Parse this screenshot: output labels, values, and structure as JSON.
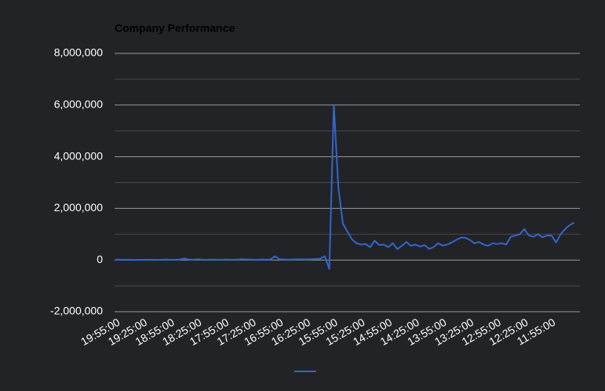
{
  "chart_data": {
    "type": "line",
    "title": "Company Performance",
    "categories": [
      "19:55:00",
      null,
      null,
      null,
      null,
      null,
      "19:25:00",
      null,
      null,
      null,
      null,
      null,
      "18:55:00",
      null,
      null,
      null,
      null,
      null,
      "18:25:00",
      null,
      null,
      null,
      null,
      null,
      "17:55:00",
      null,
      null,
      null,
      null,
      null,
      "17:25:00",
      null,
      null,
      null,
      null,
      null,
      "16:55:00",
      null,
      null,
      null,
      null,
      null,
      "16:25:00",
      null,
      null,
      null,
      null,
      null,
      "15:55:00",
      null,
      null,
      null,
      null,
      null,
      "15:25:00",
      null,
      null,
      null,
      null,
      null,
      "14:55:00",
      null,
      null,
      null,
      null,
      null,
      "14:25:00",
      null,
      null,
      null,
      null,
      null,
      "13:55:00",
      null,
      null,
      null,
      null,
      null,
      "13:25:00",
      null,
      null,
      null,
      null,
      null,
      "12:55:00",
      null,
      null,
      null,
      null,
      null,
      "12:25:00",
      null,
      null,
      null,
      null,
      null,
      "11:55:00",
      null,
      null,
      null,
      null,
      null
    ],
    "series": [
      {
        "color": "#3366cc",
        "values": [
          20000,
          10000,
          15000,
          10000,
          5000,
          10000,
          5000,
          15000,
          10000,
          5000,
          10000,
          20000,
          10000,
          15000,
          20000,
          60000,
          20000,
          10000,
          30000,
          15000,
          10000,
          20000,
          15000,
          10000,
          20000,
          15000,
          10000,
          20000,
          30000,
          20000,
          15000,
          10000,
          20000,
          15000,
          20000,
          150000,
          30000,
          20000,
          15000,
          20000,
          25000,
          30000,
          20000,
          30000,
          40000,
          50000,
          150000,
          -350000,
          6000000,
          2800000,
          1400000,
          1100000,
          800000,
          650000,
          600000,
          620000,
          500000,
          750000,
          580000,
          600000,
          500000,
          650000,
          420000,
          550000,
          700000,
          550000,
          600000,
          520000,
          580000,
          430000,
          500000,
          650000,
          560000,
          600000,
          680000,
          780000,
          870000,
          860000,
          780000,
          650000,
          700000,
          600000,
          550000,
          650000,
          620000,
          650000,
          600000,
          900000,
          950000,
          1000000,
          1200000,
          950000,
          900000,
          1000000,
          880000,
          950000,
          950000,
          680000,
          1000000,
          1200000,
          1350000,
          1450000
        ]
      }
    ],
    "ylim": [
      -2000000,
      8000000
    ],
    "yticks": [
      {
        "value": -2000000,
        "label": "-2,000,000"
      },
      0,
      {
        "value": 2000000,
        "label": "2,000,000"
      },
      {
        "value": 4000000,
        "label": "4,000,000"
      },
      {
        "value": 6000000,
        "label": "6,000,000"
      },
      {
        "value": 8000000,
        "label": "8,000,000"
      }
    ],
    "minor_yticks": [
      -1000000,
      1000000,
      3000000,
      5000000,
      7000000
    ],
    "grid": true
  }
}
